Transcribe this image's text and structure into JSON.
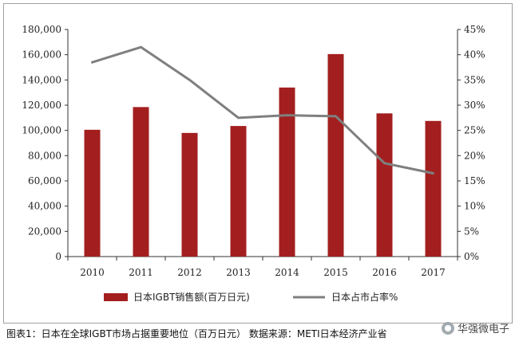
{
  "chart_data": {
    "type": "bar",
    "categories": [
      "2010",
      "2011",
      "2012",
      "2013",
      "2014",
      "2015",
      "2016",
      "2017"
    ],
    "series": [
      {
        "name": "日本IGBT销售额(百万日元)",
        "type": "bar",
        "axis": "left",
        "color": "#a31f1f",
        "values": [
          100500,
          118500,
          98000,
          103500,
          134000,
          160500,
          113500,
          107500
        ]
      },
      {
        "name": "日本占市占率%",
        "type": "line",
        "axis": "right",
        "color": "#7f7f7f",
        "values": [
          38.5,
          41.5,
          35.0,
          27.5,
          28.0,
          27.8,
          18.5,
          16.5
        ]
      }
    ],
    "left_axis": {
      "min": 0,
      "max": 180000,
      "step": 20000,
      "tick_labels": [
        "0",
        "20,000",
        "40,000",
        "60,000",
        "80,000",
        "100,000",
        "120,000",
        "140,000",
        "160,000",
        "180,000"
      ]
    },
    "right_axis": {
      "min": 0,
      "max": 45,
      "step": 5,
      "tick_labels": [
        "0%",
        "5%",
        "10%",
        "15%",
        "20%",
        "25%",
        "30%",
        "35%",
        "40%",
        "45%"
      ]
    },
    "grid": false,
    "legend_position": "bottom"
  },
  "caption": "图表1：日本在全球IGBT市场占据重要地位（百万日元） 数据来源：METI日本经济产业省",
  "watermark": "华强微电子"
}
